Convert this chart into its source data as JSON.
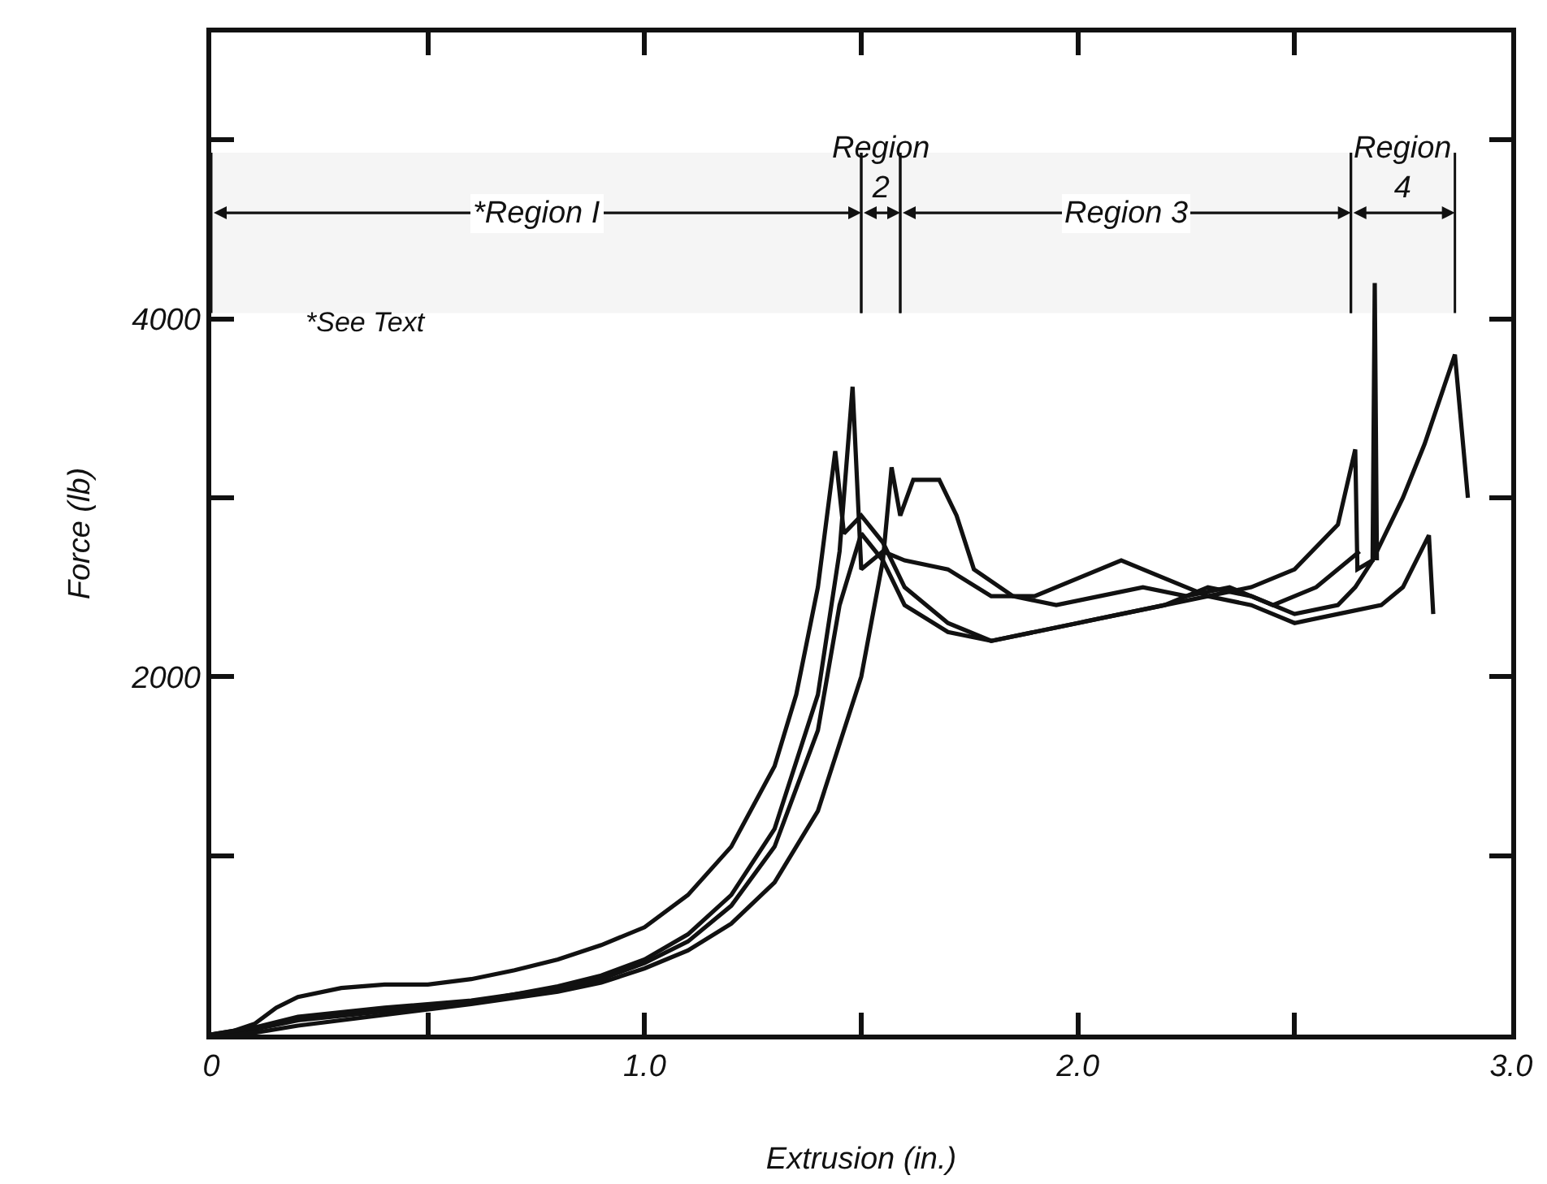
{
  "chart_data": {
    "type": "line",
    "xlabel": "Extrusion (in.)",
    "ylabel": "Force (lb)",
    "xlim": [
      0,
      3.0
    ],
    "xticks": [
      0,
      {
        "value": 0.5,
        "label": null
      },
      {
        "value": 1,
        "label": "1.0"
      },
      {
        "value": 1.5,
        "label": null
      },
      {
        "value": 2,
        "label": "2.0"
      },
      {
        "value": 2.5,
        "label": null
      },
      {
        "value": 3,
        "label": "3.0"
      }
    ],
    "ylim": [
      0,
      5600
    ],
    "yticks": [
      {
        "value": 0,
        "label": null
      },
      {
        "value": 1000,
        "label": null
      },
      2000,
      {
        "value": 3000,
        "label": null
      },
      4000,
      {
        "value": 5000,
        "label": null
      }
    ],
    "grid": false,
    "marker": "none",
    "line_style": "solid",
    "annotations": [
      "*See Text"
    ],
    "bands": [
      {
        "axis": "x",
        "from": 0,
        "to": 1.5,
        "label": "*Region I"
      },
      {
        "axis": "x",
        "from": 1.5,
        "to": 1.59,
        "label": "Region\n2"
      },
      {
        "axis": "x",
        "from": 1.59,
        "to": 2.63,
        "label": "Region 3"
      },
      {
        "axis": "x",
        "from": 2.63,
        "to": 2.87,
        "label": "Region\n4"
      }
    ],
    "series": [
      {
        "color": "#111111",
        "x": [
          0,
          0.05,
          0.1,
          0.15,
          0.2,
          0.3,
          0.4,
          0.5,
          0.6,
          0.7,
          0.8,
          0.9,
          1.0,
          1.1,
          1.2,
          1.3,
          1.35,
          1.4,
          1.44,
          1.46,
          1.5,
          1.55,
          1.6,
          1.7,
          1.8,
          1.9,
          2.0,
          2.1,
          2.2,
          2.3,
          2.4,
          2.5,
          2.6,
          2.64,
          2.68,
          2.75,
          2.8,
          2.87,
          2.9
        ],
        "values": [
          0,
          20,
          60,
          150,
          210,
          260,
          280,
          280,
          310,
          360,
          420,
          500,
          600,
          780,
          1050,
          1500,
          1900,
          2500,
          3260,
          2800,
          2900,
          2750,
          2500,
          2300,
          2200,
          2250,
          2300,
          2350,
          2400,
          2500,
          2450,
          2350,
          2400,
          2500,
          2650,
          3000,
          3300,
          3800,
          3000
        ]
      },
      {
        "color": "#111111",
        "x": [
          0,
          0.1,
          0.2,
          0.4,
          0.6,
          0.8,
          0.9,
          1.0,
          1.1,
          1.2,
          1.3,
          1.4,
          1.45,
          1.48,
          1.5,
          1.55,
          1.6,
          1.7,
          1.8,
          1.9,
          2.0,
          2.1,
          2.2,
          2.3,
          2.4,
          2.5,
          2.6,
          2.64,
          2.645,
          2.68,
          2.685,
          2.69
        ],
        "values": [
          0,
          30,
          80,
          130,
          180,
          270,
          330,
          420,
          560,
          780,
          1150,
          1900,
          2700,
          3620,
          2600,
          2700,
          2650,
          2600,
          2450,
          2450,
          2550,
          2650,
          2550,
          2450,
          2500,
          2600,
          2850,
          3270,
          2600,
          2650,
          4200,
          2650
        ]
      },
      {
        "color": "#111111",
        "x": [
          0,
          0.1,
          0.2,
          0.4,
          0.6,
          0.8,
          0.9,
          1.0,
          1.1,
          1.2,
          1.3,
          1.4,
          1.5,
          1.55,
          1.57,
          1.59,
          1.62,
          1.68,
          1.72,
          1.76,
          1.85,
          1.95,
          2.05,
          2.15,
          2.25,
          2.35,
          2.45,
          2.55,
          2.6,
          2.65
        ],
        "values": [
          0,
          10,
          50,
          110,
          170,
          240,
          290,
          370,
          470,
          620,
          850,
          1250,
          2000,
          2650,
          3170,
          2900,
          3100,
          3100,
          2900,
          2600,
          2450,
          2400,
          2450,
          2500,
          2450,
          2500,
          2400,
          2500,
          2600,
          2700
        ]
      },
      {
        "color": "#111111",
        "x": [
          0,
          0.1,
          0.2,
          0.4,
          0.6,
          0.8,
          0.9,
          1.0,
          1.1,
          1.2,
          1.3,
          1.4,
          1.45,
          1.5,
          1.55,
          1.6,
          1.7,
          1.8,
          1.9,
          2.0,
          2.1,
          2.2,
          2.3,
          2.4,
          2.5,
          2.6,
          2.7,
          2.75,
          2.81,
          2.82
        ],
        "values": [
          0,
          40,
          100,
          150,
          190,
          260,
          310,
          400,
          520,
          720,
          1050,
          1700,
          2400,
          2800,
          2650,
          2400,
          2250,
          2200,
          2250,
          2300,
          2350,
          2400,
          2450,
          2400,
          2300,
          2350,
          2400,
          2500,
          2790,
          2350
        ]
      }
    ]
  }
}
